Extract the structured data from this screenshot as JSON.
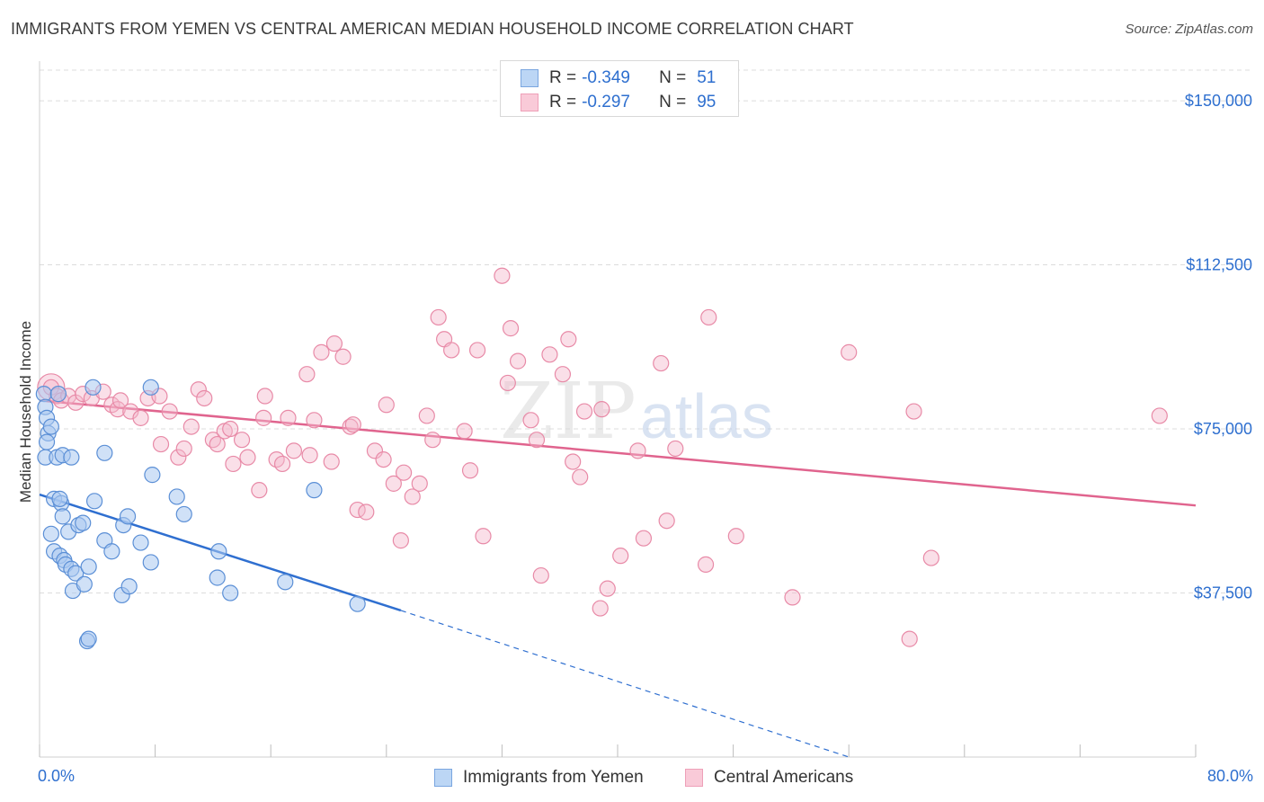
{
  "title": "IMMIGRANTS FROM YEMEN VS CENTRAL AMERICAN MEDIAN HOUSEHOLD INCOME CORRELATION CHART",
  "source": "Source: ZipAtlas.com",
  "watermark": {
    "zip": "ZIP",
    "atlas": "atlas"
  },
  "legend": {
    "series1": {
      "r_label": "R =",
      "r_value": "-0.349",
      "n_label": "N =",
      "n_value": "51"
    },
    "series2": {
      "r_label": "R =",
      "r_value": "-0.297",
      "n_label": "N =",
      "n_value": "95"
    }
  },
  "colors": {
    "blue_fill": "#a9c8f0",
    "blue_stroke": "#5b8fd6",
    "blue_line": "#2f6fd0",
    "pink_fill": "#f5b8cb",
    "pink_stroke": "#e88aa7",
    "pink_line": "#e0648e",
    "grid": "#dcdcdc",
    "axis_text": "#2e6fcf"
  },
  "chart_data": {
    "type": "scatter",
    "title": "IMMIGRANTS FROM YEMEN VS CENTRAL AMERICAN MEDIAN HOUSEHOLD INCOME CORRELATION CHART",
    "xlabel": "",
    "ylabel": "Median Household Income",
    "xlim": [
      0,
      80
    ],
    "ylim": [
      0,
      157000
    ],
    "x_tick_labels": [
      "0.0%",
      "80.0%"
    ],
    "y_ticks": [
      37500,
      75000,
      112500,
      150000
    ],
    "y_tick_labels": [
      "$37,500",
      "$75,000",
      "$112,500",
      "$150,000"
    ],
    "grid": true,
    "legend_position": "top-center",
    "series": [
      {
        "name": "Immigrants from Yemen",
        "color": "#5b8fd6",
        "trend": {
          "x": [
            0.0,
            25.0
          ],
          "y": [
            60000,
            33500
          ],
          "dashed_to": [
            56.0,
            0
          ]
        },
        "points": [
          [
            0.3,
            83000
          ],
          [
            0.4,
            80000
          ],
          [
            0.5,
            77500
          ],
          [
            0.6,
            74000
          ],
          [
            0.5,
            72000
          ],
          [
            0.4,
            68500
          ],
          [
            0.8,
            75500
          ],
          [
            1.2,
            68500
          ],
          [
            1.6,
            69000
          ],
          [
            2.2,
            68500
          ],
          [
            1.0,
            59000
          ],
          [
            1.5,
            58000
          ],
          [
            1.4,
            59000
          ],
          [
            1.6,
            55000
          ],
          [
            0.8,
            51000
          ],
          [
            2.0,
            51500
          ],
          [
            2.7,
            53000
          ],
          [
            3.0,
            53500
          ],
          [
            3.8,
            58500
          ],
          [
            1.0,
            47000
          ],
          [
            1.4,
            46000
          ],
          [
            1.7,
            45000
          ],
          [
            1.8,
            44000
          ],
          [
            2.2,
            43000
          ],
          [
            2.5,
            42000
          ],
          [
            3.4,
            43500
          ],
          [
            2.3,
            38000
          ],
          [
            3.1,
            39500
          ],
          [
            5.7,
            37000
          ],
          [
            6.2,
            39000
          ],
          [
            5.8,
            53000
          ],
          [
            4.5,
            49500
          ],
          [
            5.0,
            47000
          ],
          [
            7.0,
            49000
          ],
          [
            7.7,
            44500
          ],
          [
            6.1,
            55000
          ],
          [
            4.5,
            69500
          ],
          [
            7.8,
            64500
          ],
          [
            9.5,
            59500
          ],
          [
            10.0,
            55500
          ],
          [
            12.4,
            47000
          ],
          [
            12.3,
            41000
          ],
          [
            13.2,
            37500
          ],
          [
            17.0,
            40000
          ],
          [
            19.0,
            61000
          ],
          [
            22.0,
            35000
          ],
          [
            7.7,
            84500
          ],
          [
            3.3,
            26500
          ],
          [
            3.4,
            27000
          ],
          [
            3.7,
            84500
          ],
          [
            1.3,
            83000
          ]
        ]
      },
      {
        "name": "Central Americans",
        "color": "#e88aa7",
        "trend": {
          "x": [
            0.0,
            80.0
          ],
          "y": [
            81500,
            57500
          ]
        },
        "points": [
          [
            0.8,
            84500
          ],
          [
            1.2,
            82500
          ],
          [
            1.5,
            81500
          ],
          [
            2.0,
            82500
          ],
          [
            2.5,
            81000
          ],
          [
            3.0,
            83000
          ],
          [
            3.6,
            82000
          ],
          [
            4.4,
            83500
          ],
          [
            5.0,
            80500
          ],
          [
            5.4,
            79500
          ],
          [
            5.6,
            81500
          ],
          [
            6.3,
            79000
          ],
          [
            7.5,
            82000
          ],
          [
            7.0,
            77500
          ],
          [
            8.3,
            82500
          ],
          [
            9.0,
            79000
          ],
          [
            8.4,
            71500
          ],
          [
            9.6,
            68500
          ],
          [
            10.0,
            70500
          ],
          [
            10.5,
            75500
          ],
          [
            11.0,
            84000
          ],
          [
            11.4,
            82000
          ],
          [
            12.0,
            72500
          ],
          [
            12.3,
            71500
          ],
          [
            12.8,
            74500
          ],
          [
            13.2,
            75000
          ],
          [
            13.4,
            67000
          ],
          [
            14.0,
            72500
          ],
          [
            14.4,
            68500
          ],
          [
            15.2,
            61000
          ],
          [
            15.5,
            77500
          ],
          [
            15.6,
            82500
          ],
          [
            16.4,
            68000
          ],
          [
            16.8,
            67000
          ],
          [
            17.2,
            77500
          ],
          [
            17.6,
            70000
          ],
          [
            18.5,
            87500
          ],
          [
            18.7,
            69000
          ],
          [
            19.0,
            77000
          ],
          [
            19.5,
            92500
          ],
          [
            20.2,
            67500
          ],
          [
            20.4,
            94500
          ],
          [
            21.0,
            91500
          ],
          [
            21.5,
            75500
          ],
          [
            21.7,
            76000
          ],
          [
            22.0,
            56500
          ],
          [
            22.6,
            56000
          ],
          [
            23.2,
            70000
          ],
          [
            23.8,
            68000
          ],
          [
            24.0,
            80500
          ],
          [
            24.5,
            62500
          ],
          [
            25.0,
            49500
          ],
          [
            25.2,
            65000
          ],
          [
            25.8,
            59500
          ],
          [
            26.3,
            62500
          ],
          [
            26.8,
            78000
          ],
          [
            27.2,
            72500
          ],
          [
            27.6,
            100500
          ],
          [
            28.0,
            95500
          ],
          [
            28.5,
            93000
          ],
          [
            29.4,
            74500
          ],
          [
            29.8,
            65500
          ],
          [
            30.3,
            93000
          ],
          [
            30.7,
            50500
          ],
          [
            32.0,
            110000
          ],
          [
            32.4,
            85500
          ],
          [
            32.6,
            98000
          ],
          [
            33.1,
            90500
          ],
          [
            34.0,
            77000
          ],
          [
            34.4,
            72500
          ],
          [
            34.7,
            41500
          ],
          [
            35.3,
            92000
          ],
          [
            36.2,
            87500
          ],
          [
            36.6,
            95500
          ],
          [
            36.9,
            67500
          ],
          [
            37.4,
            64000
          ],
          [
            37.7,
            79000
          ],
          [
            38.9,
            79500
          ],
          [
            38.8,
            34000
          ],
          [
            39.3,
            38500
          ],
          [
            40.2,
            46000
          ],
          [
            41.4,
            70000
          ],
          [
            41.8,
            50000
          ],
          [
            43.0,
            90000
          ],
          [
            43.4,
            54000
          ],
          [
            44.0,
            70500
          ],
          [
            46.1,
            44000
          ],
          [
            46.3,
            100500
          ],
          [
            48.2,
            50500
          ],
          [
            52.1,
            36500
          ],
          [
            56.0,
            92500
          ],
          [
            60.2,
            27000
          ],
          [
            60.5,
            79000
          ],
          [
            61.7,
            45500
          ],
          [
            77.5,
            78000
          ]
        ]
      }
    ]
  }
}
